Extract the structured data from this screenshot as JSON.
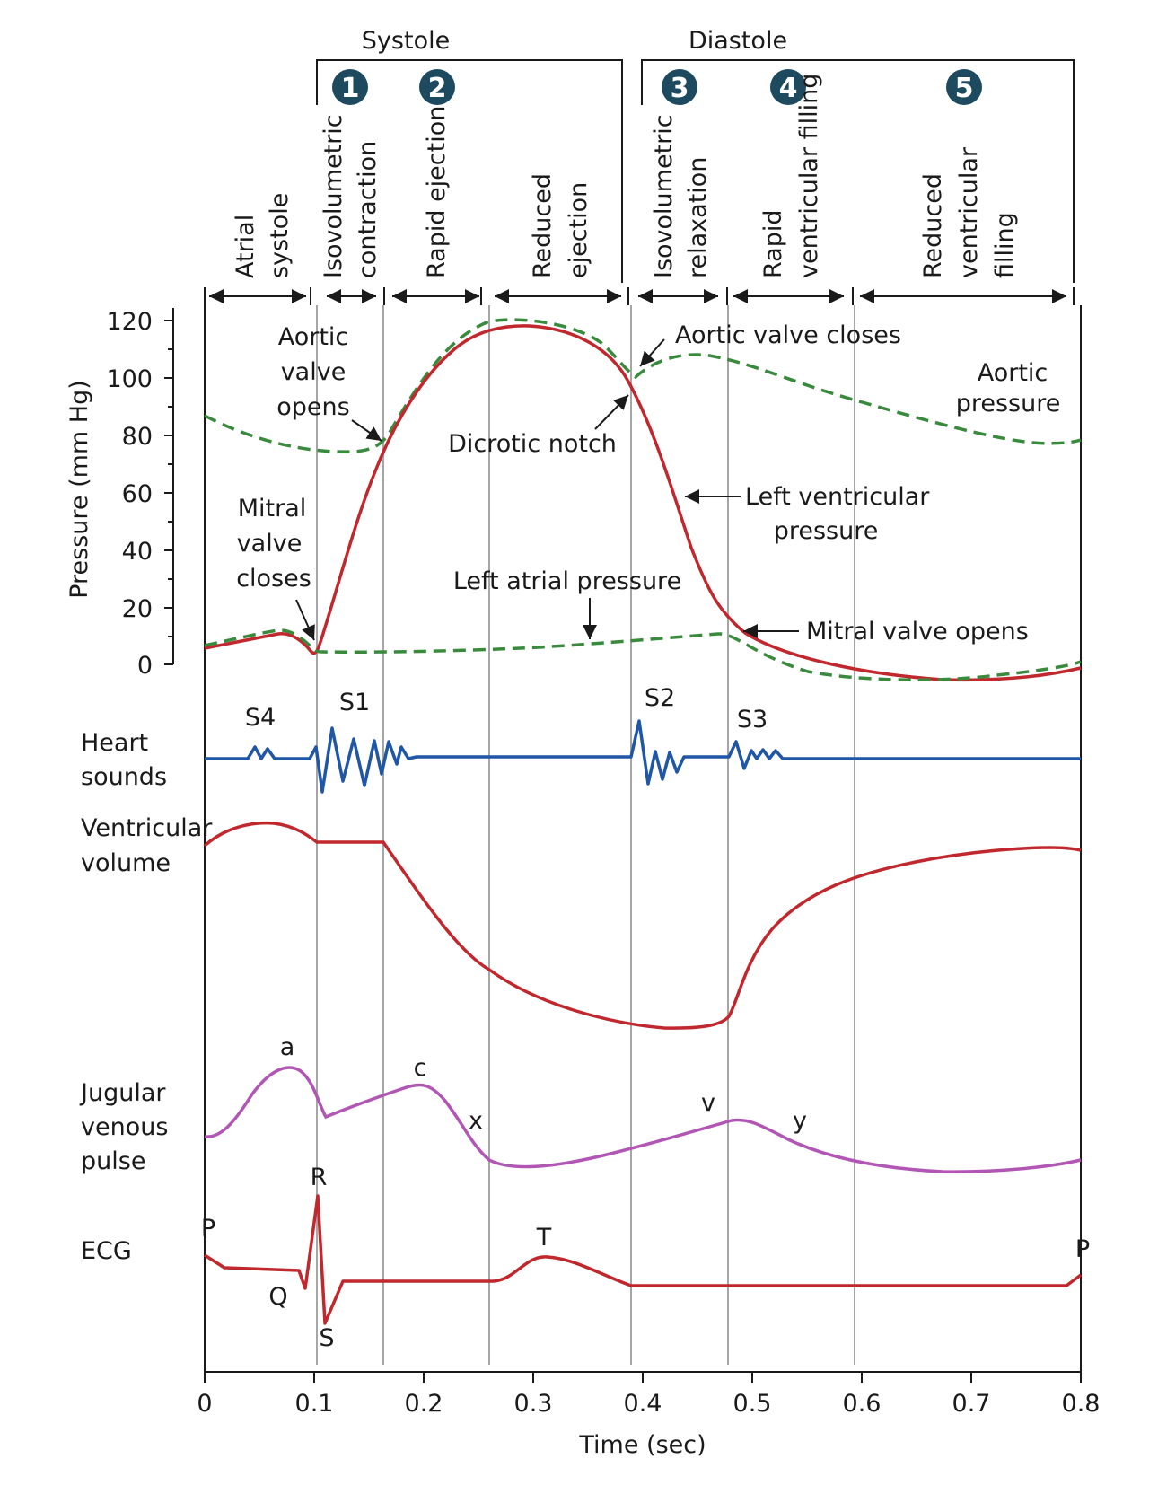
{
  "phase_groups": {
    "systole": "Systole",
    "diastole": "Diastole"
  },
  "phase_numbers": [
    "1",
    "2",
    "3",
    "4",
    "5"
  ],
  "phases": [
    [
      "Atrial",
      "systole"
    ],
    [
      "Isovolumetric",
      "contraction"
    ],
    [
      "Rapid ejection"
    ],
    [
      "Reduced",
      "ejection"
    ],
    [
      "Isovolumetric",
      "relaxation"
    ],
    [
      "Rapid",
      "ventricular filling"
    ],
    [
      "Reduced",
      "ventricular",
      "filling"
    ]
  ],
  "pressure_axis": {
    "label": "Pressure (mm Hg)",
    "ticks": [
      "120",
      "100",
      "80",
      "60",
      "40",
      "20",
      "0"
    ]
  },
  "time_axis": {
    "label": "Time (sec)",
    "ticks": [
      "0",
      "0.1",
      "0.2",
      "0.3",
      "0.4",
      "0.5",
      "0.6",
      "0.7",
      "0.8"
    ]
  },
  "annotations": {
    "aortic_valve_opens": [
      "Aortic",
      "valve",
      "opens"
    ],
    "aortic_valve_closes": "Aortic valve closes",
    "aortic_pressure": [
      "Aortic",
      "pressure"
    ],
    "dicrotic_notch": "Dicrotic notch",
    "lv_pressure": [
      "Left ventricular",
      "pressure"
    ],
    "mitral_valve_closes": [
      "Mitral",
      "valve",
      "closes"
    ],
    "left_atrial_pressure": "Left atrial pressure",
    "mitral_valve_opens": "Mitral valve opens"
  },
  "panels": {
    "heart_sounds": [
      "Heart",
      "sounds"
    ],
    "ventricular_volume": [
      "Ventricular",
      "volume"
    ],
    "jvp": [
      "Jugular",
      "venous",
      "pulse"
    ],
    "ecg": "ECG"
  },
  "heart_sound_labels": [
    "S4",
    "S1",
    "S2",
    "S3"
  ],
  "jvp_labels": [
    "a",
    "c",
    "x",
    "v",
    "y"
  ],
  "ecg_labels": [
    "P",
    "Q",
    "R",
    "S",
    "T",
    "P"
  ],
  "colors": {
    "lv_pressure": "#c0282d",
    "aortic_pressure": "#3a8a3e",
    "heart_sounds": "#1f56a5",
    "jvp": "#b156b5",
    "badge": "#1d4a5e"
  }
}
